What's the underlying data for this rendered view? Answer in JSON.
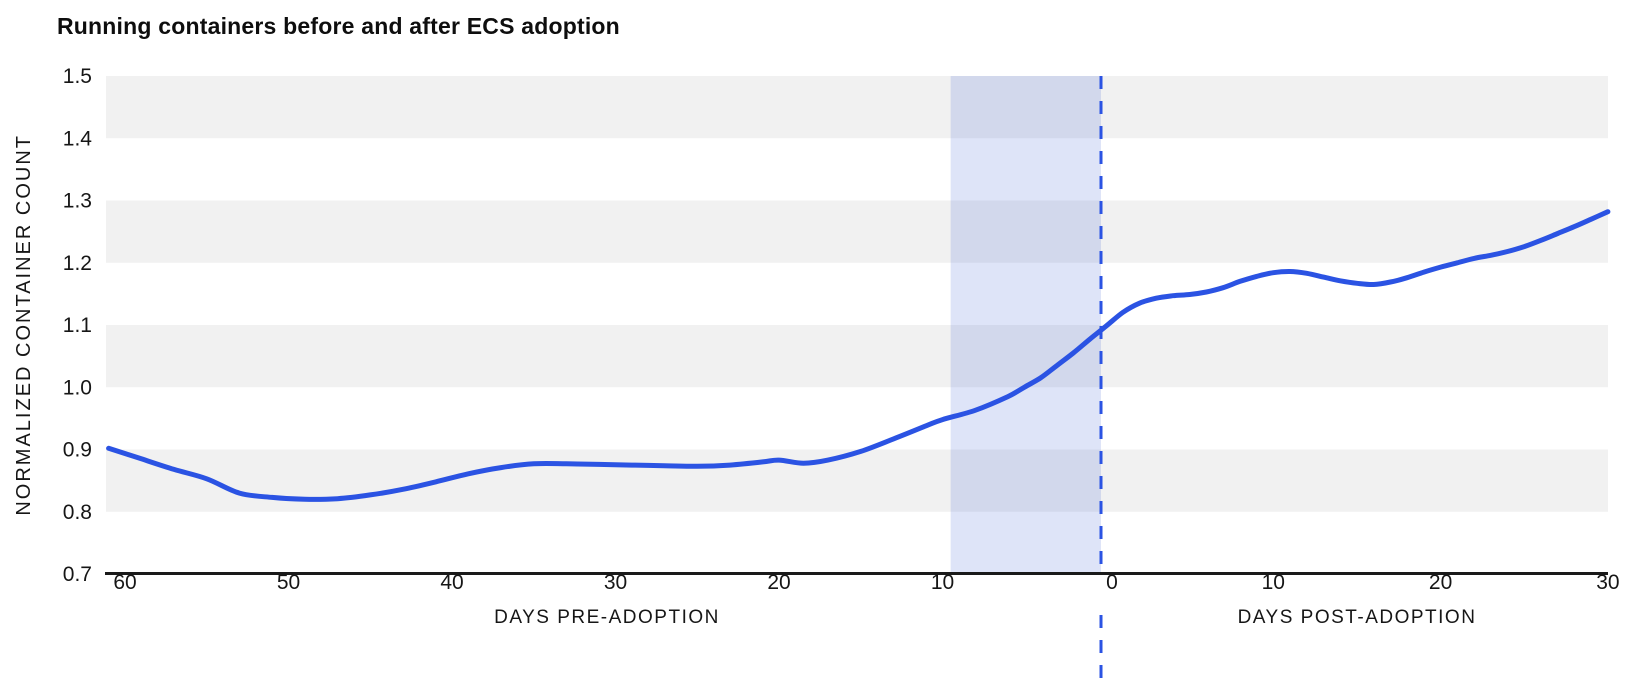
{
  "header": {
    "title": "Running containers before and after ECS adoption"
  },
  "chart_data": {
    "type": "line",
    "title": "Running containers before and after ECS adoption",
    "x_axis": {
      "pre_label": "DAYS PRE-ADOPTION",
      "post_label": "DAYS POST-ADOPTION",
      "pre_ticks": [
        "60",
        "50",
        "40",
        "30",
        "20",
        "10"
      ],
      "zero_label": "0",
      "post_ticks": [
        "10",
        "20",
        "30"
      ],
      "pre_range_days": [
        -61,
        0
      ],
      "post_range_days": [
        0,
        30
      ]
    },
    "y_axis": {
      "label": "NORMALIZED CONTAINER COUNT",
      "min": 0.7,
      "max": 1.5,
      "ticks": [
        "1.5",
        "1.4",
        "1.3",
        "1.2",
        "1.1",
        "1.0",
        "0.9",
        "0.8",
        "0.7"
      ]
    },
    "grid": {
      "stripe_value_ranges": [
        [
          0.8,
          0.9
        ],
        [
          1.0,
          1.1
        ],
        [
          1.2,
          1.3
        ],
        [
          1.4,
          1.5
        ]
      ],
      "stripe_color": "#f1f1f1"
    },
    "annotations": {
      "highlight_band": {
        "from_day": -9.5,
        "to_day": 0,
        "fill": "#3c5fd6",
        "opacity": 0.17
      },
      "event_line": {
        "day": 0,
        "style": "dashed",
        "color": "#2b53e3"
      }
    },
    "axis_color": "#1a1a1a",
    "text_color": "#161616",
    "series": [
      {
        "name": "normalized-container-count",
        "color": "#2b53e3",
        "width": 5,
        "points": [
          [
            -61,
            0.902
          ],
          [
            -59,
            0.885
          ],
          [
            -57,
            0.868
          ],
          [
            -55,
            0.853
          ],
          [
            -53,
            0.83
          ],
          [
            -51,
            0.823
          ],
          [
            -49,
            0.82
          ],
          [
            -47,
            0.821
          ],
          [
            -45,
            0.827
          ],
          [
            -43,
            0.836
          ],
          [
            -41,
            0.848
          ],
          [
            -39,
            0.861
          ],
          [
            -37,
            0.871
          ],
          [
            -35,
            0.877
          ],
          [
            -33,
            0.877
          ],
          [
            -31,
            0.876
          ],
          [
            -29,
            0.875
          ],
          [
            -27,
            0.874
          ],
          [
            -25,
            0.873
          ],
          [
            -23,
            0.875
          ],
          [
            -21,
            0.88
          ],
          [
            -20,
            0.883
          ],
          [
            -18.5,
            0.878
          ],
          [
            -17,
            0.883
          ],
          [
            -15,
            0.897
          ],
          [
            -13,
            0.917
          ],
          [
            -11,
            0.938
          ],
          [
            -10,
            0.948
          ],
          [
            -8,
            0.963
          ],
          [
            -6,
            0.985
          ],
          [
            -5,
            1.0
          ],
          [
            -4,
            1.015
          ],
          [
            -3,
            1.035
          ],
          [
            -2,
            1.055
          ],
          [
            -1,
            1.077
          ],
          [
            0,
            1.098
          ],
          [
            1,
            1.12
          ],
          [
            2,
            1.135
          ],
          [
            3,
            1.143
          ],
          [
            4,
            1.147
          ],
          [
            5,
            1.149
          ],
          [
            6,
            1.153
          ],
          [
            7,
            1.16
          ],
          [
            8,
            1.17
          ],
          [
            9,
            1.178
          ],
          [
            10,
            1.184
          ],
          [
            11,
            1.186
          ],
          [
            12,
            1.183
          ],
          [
            13,
            1.177
          ],
          [
            14,
            1.171
          ],
          [
            15,
            1.167
          ],
          [
            16,
            1.165
          ],
          [
            17,
            1.169
          ],
          [
            18,
            1.176
          ],
          [
            19,
            1.185
          ],
          [
            20,
            1.193
          ],
          [
            21,
            1.2
          ],
          [
            22,
            1.207
          ],
          [
            23,
            1.212
          ],
          [
            24,
            1.218
          ],
          [
            25,
            1.226
          ],
          [
            26,
            1.236
          ],
          [
            27,
            1.247
          ],
          [
            28,
            1.258
          ],
          [
            29,
            1.27
          ],
          [
            30,
            1.282
          ]
        ]
      }
    ]
  }
}
